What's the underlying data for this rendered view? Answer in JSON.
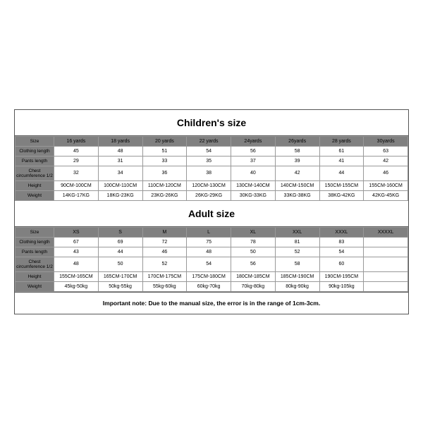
{
  "children": {
    "title": "Children's size",
    "headers": [
      "Size",
      "16 yards",
      "18 yards",
      "20 yards",
      "22 yards",
      "24yards",
      "26yards",
      "28 yards",
      "30yards"
    ],
    "rows": [
      {
        "label": "Clothing length",
        "vals": [
          "45",
          "48",
          "51",
          "54",
          "56",
          "58",
          "61",
          "63"
        ]
      },
      {
        "label": "Pants length",
        "vals": [
          "29",
          "31",
          "33",
          "35",
          "37",
          "39",
          "41",
          "42"
        ]
      },
      {
        "label": "Chest circumference 1/2",
        "vals": [
          "32",
          "34",
          "36",
          "38",
          "40",
          "42",
          "44",
          "46"
        ]
      },
      {
        "label": "Height",
        "vals": [
          "90CM-100CM",
          "100CM-110CM",
          "110CM-120CM",
          "120CM-130CM",
          "130CM-140CM",
          "140CM-150CM",
          "150CM-155CM",
          "155CM-160CM"
        ]
      },
      {
        "label": "Weight",
        "vals": [
          "14KG-17KG",
          "18KG-23KG",
          "23KG-26KG",
          "26KG-29KG",
          "30KG-33KG",
          "33KG-38KG",
          "38KG-42KG",
          "42KG-45KG"
        ]
      }
    ]
  },
  "adult": {
    "title": "Adult size",
    "headers": [
      "Size",
      "XS",
      "S",
      "M",
      "L",
      "XL",
      "XXL",
      "XXXL",
      "XXXXL"
    ],
    "rows": [
      {
        "label": "Clothing length",
        "vals": [
          "67",
          "69",
          "72",
          "75",
          "78",
          "81",
          "83",
          ""
        ]
      },
      {
        "label": "Pants length",
        "vals": [
          "43",
          "44",
          "46",
          "48",
          "50",
          "52",
          "54",
          ""
        ]
      },
      {
        "label": "Chest circumference 1/2",
        "vals": [
          "48",
          "50",
          "52",
          "54",
          "56",
          "58",
          "60",
          ""
        ]
      },
      {
        "label": "Height",
        "vals": [
          "155CM-165CM",
          "165CM-170CM",
          "170CM-175CM",
          "175CM-180CM",
          "180CM-185CM",
          "185CM-190CM",
          "190CM-195CM",
          ""
        ]
      },
      {
        "label": "Weight",
        "vals": [
          "45kg-50kg",
          "50kg-55kg",
          "55kg-60kg",
          "60kg-70kg",
          "70kg-80kg",
          "80kg-90kg",
          "90kg-105kg",
          ""
        ]
      }
    ]
  },
  "note": "Important note: Due to the manual size, the error is in the range of 1cm-3cm.",
  "colors": {
    "header_bg": "#808080",
    "border": "#999999",
    "outer_border": "#555555",
    "bg": "#ffffff",
    "text": "#000000"
  },
  "typography": {
    "title_fontsize": 14,
    "cell_fontsize": 7,
    "note_fontsize": 8.5,
    "font_family": "Arial"
  }
}
